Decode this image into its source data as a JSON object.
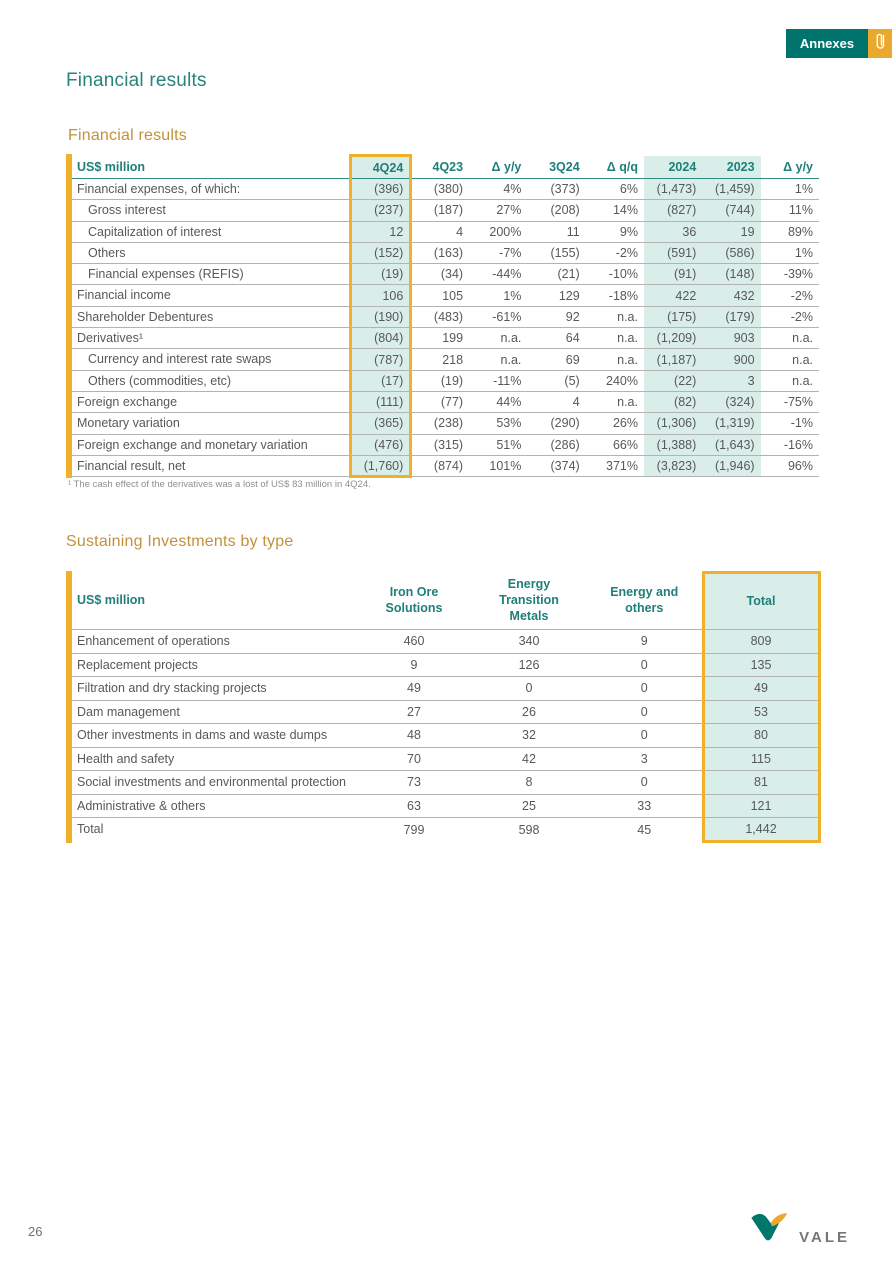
{
  "annexes": {
    "label": "Annexes",
    "icon": "paperclip-icon"
  },
  "heading": "Financial results",
  "colors": {
    "teal_dark": "#00736c",
    "teal_heading": "#26837d",
    "teal_fill": "#d9ede9",
    "gold": "#f0b02a",
    "ochre_title": "#c3913d",
    "body_text": "#57585b"
  },
  "table1": {
    "title": "Financial results",
    "unit_label": "US$ million",
    "columns": [
      "4Q24",
      "4Q23",
      "Δ y/y",
      "3Q24",
      "Δ q/q",
      "2024",
      "2023",
      "Δ y/y"
    ],
    "boxed_column": 0,
    "teal_columns": [
      0,
      5,
      6
    ],
    "rows": [
      {
        "label": "Financial expenses, of which:",
        "indent": false,
        "values": [
          "(396)",
          "(380)",
          "4%",
          "(373)",
          "6%",
          "(1,473)",
          "(1,459)",
          "1%"
        ]
      },
      {
        "label": "Gross interest",
        "indent": true,
        "values": [
          "(237)",
          "(187)",
          "27%",
          "(208)",
          "14%",
          "(827)",
          "(744)",
          "11%"
        ]
      },
      {
        "label": "Capitalization of interest",
        "indent": true,
        "values": [
          "12",
          "4",
          "200%",
          "11",
          "9%",
          "36",
          "19",
          "89%"
        ]
      },
      {
        "label": "Others",
        "indent": true,
        "values": [
          "(152)",
          "(163)",
          "-7%",
          "(155)",
          "-2%",
          "(591)",
          "(586)",
          "1%"
        ]
      },
      {
        "label": "Financial expenses (REFIS)",
        "indent": true,
        "values": [
          "(19)",
          "(34)",
          "-44%",
          "(21)",
          "-10%",
          "(91)",
          "(148)",
          "-39%"
        ]
      },
      {
        "label": "Financial income",
        "indent": false,
        "values": [
          "106",
          "105",
          "1%",
          "129",
          "-18%",
          "422",
          "432",
          "-2%"
        ]
      },
      {
        "label": "Shareholder Debentures",
        "indent": false,
        "values": [
          "(190)",
          "(483)",
          "-61%",
          "92",
          "n.a.",
          "(175)",
          "(179)",
          "-2%"
        ]
      },
      {
        "label": "Derivatives¹",
        "indent": false,
        "values": [
          "(804)",
          "199",
          "n.a.",
          "64",
          "n.a.",
          "(1,209)",
          "903",
          "n.a."
        ]
      },
      {
        "label": "Currency and interest rate swaps",
        "indent": true,
        "values": [
          "(787)",
          "218",
          "n.a.",
          "69",
          "n.a.",
          "(1,187)",
          "900",
          "n.a."
        ]
      },
      {
        "label": "Others (commodities, etc)",
        "indent": true,
        "values": [
          "(17)",
          "(19)",
          "-11%",
          "(5)",
          "240%",
          "(22)",
          "3",
          "n.a."
        ]
      },
      {
        "label": "Foreign exchange",
        "indent": false,
        "values": [
          "(111)",
          "(77)",
          "44%",
          "4",
          "n.a.",
          "(82)",
          "(324)",
          "-75%"
        ]
      },
      {
        "label": "Monetary variation",
        "indent": false,
        "values": [
          "(365)",
          "(238)",
          "53%",
          "(290)",
          "26%",
          "(1,306)",
          "(1,319)",
          "-1%"
        ]
      },
      {
        "label": "Foreign exchange and monetary variation",
        "indent": false,
        "values": [
          "(476)",
          "(315)",
          "51%",
          "(286)",
          "66%",
          "(1,388)",
          "(1,643)",
          "-16%"
        ]
      },
      {
        "label": "Financial result, net",
        "indent": false,
        "values": [
          "(1,760)",
          "(874)",
          "101%",
          "(374)",
          "371%",
          "(3,823)",
          "(1,946)",
          "96%"
        ]
      }
    ],
    "footnote": "¹ The cash effect of the derivatives was a lost of US$ 83 million in 4Q24."
  },
  "table2": {
    "title": "Sustaining Investments by type",
    "unit_label": "US$ million",
    "columns": [
      "Iron Ore\nSolutions",
      "Energy\nTransition\nMetals",
      "Energy and\nothers",
      "Total"
    ],
    "boxed_column": 3,
    "teal_columns": [
      3
    ],
    "rows": [
      {
        "label": "Enhancement of operations",
        "indent": false,
        "values": [
          "460",
          "340",
          "9",
          "809"
        ]
      },
      {
        "label": "Replacement projects",
        "indent": false,
        "values": [
          "9",
          "126",
          "0",
          "135"
        ]
      },
      {
        "label": "Filtration and dry stacking projects",
        "indent": false,
        "values": [
          "49",
          "0",
          "0",
          "49"
        ]
      },
      {
        "label": "Dam management",
        "indent": false,
        "values": [
          "27",
          "26",
          "0",
          "53"
        ]
      },
      {
        "label": "Other investments in dams and waste dumps",
        "indent": false,
        "values": [
          "48",
          "32",
          "0",
          "80"
        ]
      },
      {
        "label": "Health and safety",
        "indent": false,
        "values": [
          "70",
          "42",
          "3",
          "115"
        ]
      },
      {
        "label": "Social investments and environmental protection",
        "indent": false,
        "values": [
          "73",
          "8",
          "0",
          "81"
        ]
      },
      {
        "label": "Administrative & others",
        "indent": false,
        "values": [
          "63",
          "25",
          "33",
          "121"
        ]
      },
      {
        "label": "Total",
        "indent": false,
        "values": [
          "799",
          "598",
          "45",
          "1,442"
        ]
      }
    ]
  },
  "footer": {
    "page_number": "26",
    "brand": "VALE"
  }
}
